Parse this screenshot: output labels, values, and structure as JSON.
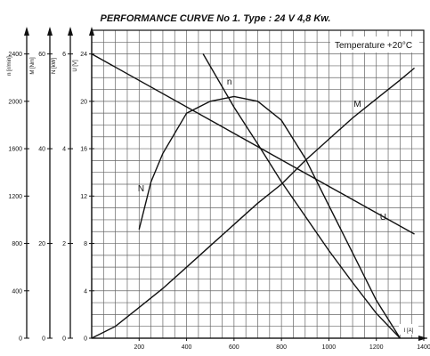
{
  "chart_data": {
    "type": "line",
    "title": "PERFORMANCE CURVE No 1.   Type : 24 V  4,8 Kw.",
    "annotation": "Temperature  +20°C",
    "grid": true,
    "x_axis": {
      "label": "I [A]",
      "range": [
        0,
        1400
      ],
      "ticks": [
        200,
        400,
        600,
        800,
        1000,
        1200,
        1400
      ]
    },
    "y_axes": [
      {
        "id": "n",
        "label": "n [r/min]",
        "range": [
          0,
          2600
        ],
        "ticks": [
          0,
          400,
          800,
          1200,
          1600,
          2000,
          2400
        ]
      },
      {
        "id": "M",
        "label": "M [Nm]",
        "range": [
          0,
          65
        ],
        "ticks": [
          0,
          20,
          40,
          60
        ]
      },
      {
        "id": "N",
        "label": "N [kW]",
        "range": [
          0,
          6.5
        ],
        "ticks": [
          0,
          2,
          4,
          6
        ]
      },
      {
        "id": "U",
        "label": "U [V]",
        "range": [
          0,
          26
        ],
        "ticks": [
          0,
          4,
          8,
          12,
          16,
          20,
          24
        ]
      }
    ],
    "series": [
      {
        "name": "n",
        "axis": "n",
        "x": [
          470,
          600,
          700,
          800,
          900,
          1000,
          1100,
          1200,
          1300
        ],
        "y": [
          2400,
          1950,
          1640,
          1320,
          1030,
          740,
          470,
          210,
          0
        ]
      },
      {
        "name": "M",
        "axis": "M",
        "x": [
          0,
          100,
          200,
          300,
          400,
          500,
          600,
          700,
          800,
          900,
          1000,
          1100,
          1200,
          1300,
          1360
        ],
        "y": [
          0,
          2.5,
          6.5,
          10.5,
          15,
          19.5,
          24,
          28.5,
          32.5,
          37.5,
          42,
          46.5,
          50.5,
          54.5,
          57
        ]
      },
      {
        "name": "N",
        "axis": "N",
        "x": [
          200,
          250,
          300,
          400,
          500,
          600,
          700,
          800,
          900,
          1000,
          1100,
          1200,
          1300
        ],
        "y": [
          2.3,
          3.3,
          3.9,
          4.75,
          5.0,
          5.1,
          5.0,
          4.6,
          3.8,
          2.8,
          1.8,
          0.8,
          0.0
        ]
      },
      {
        "name": "U",
        "axis": "U",
        "x": [
          0,
          1360
        ],
        "y": [
          24,
          8.8
        ]
      }
    ]
  }
}
